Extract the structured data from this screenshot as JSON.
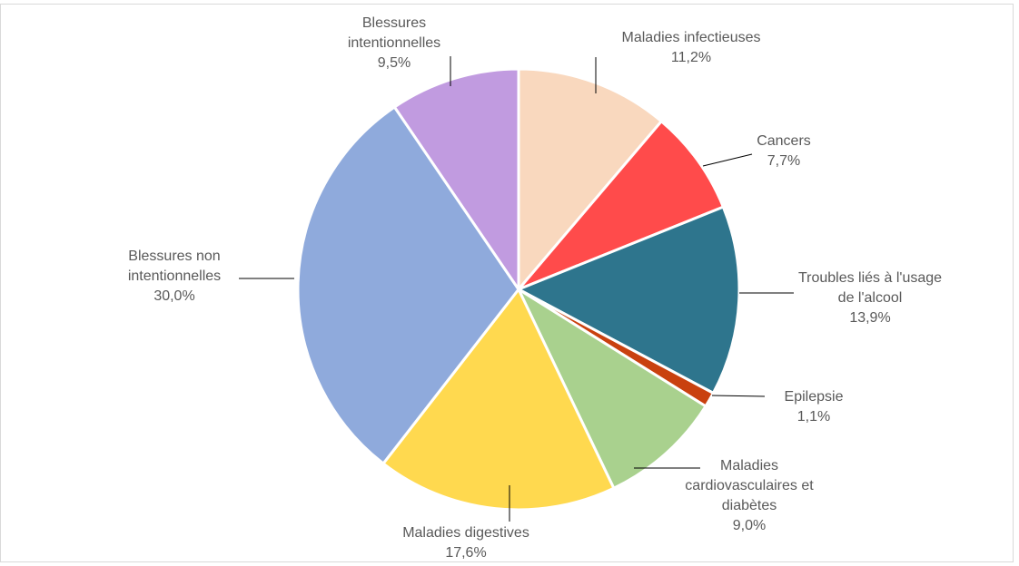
{
  "chart_data": {
    "type": "pie",
    "title": "",
    "legend": "none",
    "slices": [
      {
        "name": "Maladies infectieuses",
        "label_lines": [
          "Maladies infectieuses"
        ],
        "value": 11.2,
        "value_label": "11,2%",
        "color": "#F9D8BE"
      },
      {
        "name": "Cancers",
        "label_lines": [
          "Cancers"
        ],
        "value": 7.7,
        "value_label": "7,7%",
        "color": "#FF4B4B"
      },
      {
        "name": "Troubles liés à l'usage de l'alcool",
        "label_lines": [
          "Troubles liés à l'usage",
          "de l'alcool"
        ],
        "value": 13.9,
        "value_label": "13,9%",
        "color": "#2E758D"
      },
      {
        "name": "Epilepsie",
        "label_lines": [
          "Epilepsie"
        ],
        "value": 1.1,
        "value_label": "1,1%",
        "color": "#C9410F"
      },
      {
        "name": "Maladies cardiovasculaires et diabètes",
        "label_lines": [
          "Maladies",
          "cardiovasculaires et",
          "diabètes"
        ],
        "value": 9.0,
        "value_label": "9,0%",
        "color": "#A9D18E"
      },
      {
        "name": "Maladies digestives",
        "label_lines": [
          "Maladies digestives"
        ],
        "value": 17.6,
        "value_label": "17,6%",
        "color": "#FFD94F"
      },
      {
        "name": "Blessures non intentionnelles",
        "label_lines": [
          "Blessures non",
          "intentionnelles"
        ],
        "value": 30.0,
        "value_label": "30,0%",
        "color": "#8FAADC"
      },
      {
        "name": "Blessures intentionnelles",
        "label_lines": [
          "Blessures",
          "intentionnelles"
        ],
        "value": 9.5,
        "value_label": "9,5%",
        "color": "#C19BE0"
      }
    ]
  }
}
